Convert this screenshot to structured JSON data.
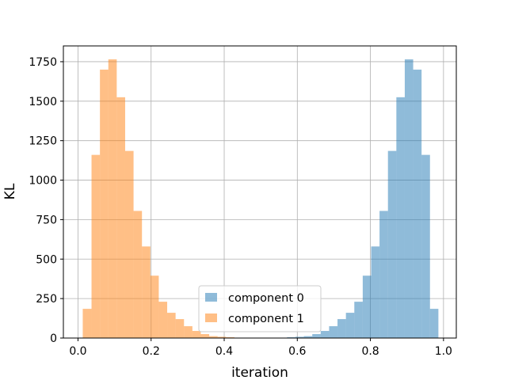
{
  "chart_data": {
    "type": "bar",
    "xlabel": "iteration",
    "ylabel": "KL",
    "xlim": [
      -0.04,
      1.035
    ],
    "ylim": [
      0,
      1850
    ],
    "xticks": [
      0.0,
      0.2,
      0.4,
      0.6,
      0.8,
      1.0
    ],
    "xtick_labels": [
      "0.0",
      "0.2",
      "0.4",
      "0.6",
      "0.8",
      "1.0"
    ],
    "yticks": [
      0,
      250,
      500,
      750,
      1000,
      1250,
      1500,
      1750
    ],
    "ytick_labels": [
      "0",
      "250",
      "500",
      "750",
      "1000",
      "1250",
      "1500",
      "1750"
    ],
    "grid": true,
    "legend_position": "lower-center",
    "series": [
      {
        "name": "component 0",
        "color": "#1f77b4",
        "alpha": 0.5,
        "bins": [
          [
            0.572,
            0.595,
            5
          ],
          [
            0.595,
            0.618,
            8
          ],
          [
            0.618,
            0.641,
            12
          ],
          [
            0.641,
            0.664,
            25
          ],
          [
            0.664,
            0.687,
            45
          ],
          [
            0.687,
            0.71,
            75
          ],
          [
            0.71,
            0.733,
            120
          ],
          [
            0.733,
            0.756,
            160
          ],
          [
            0.756,
            0.779,
            230
          ],
          [
            0.779,
            0.802,
            395
          ],
          [
            0.802,
            0.825,
            580
          ],
          [
            0.825,
            0.848,
            805
          ],
          [
            0.848,
            0.871,
            1185
          ],
          [
            0.871,
            0.894,
            1525
          ],
          [
            0.894,
            0.917,
            1765
          ],
          [
            0.917,
            0.94,
            1700
          ],
          [
            0.94,
            0.963,
            1160
          ],
          [
            0.963,
            0.986,
            185
          ]
        ]
      },
      {
        "name": "component 1",
        "color": "#ff7f0e",
        "alpha": 0.5,
        "bins": [
          [
            0.013,
            0.037,
            185
          ],
          [
            0.037,
            0.06,
            1160
          ],
          [
            0.06,
            0.083,
            1700
          ],
          [
            0.083,
            0.106,
            1765
          ],
          [
            0.106,
            0.129,
            1525
          ],
          [
            0.129,
            0.152,
            1185
          ],
          [
            0.152,
            0.175,
            805
          ],
          [
            0.175,
            0.198,
            580
          ],
          [
            0.198,
            0.221,
            395
          ],
          [
            0.221,
            0.244,
            230
          ],
          [
            0.244,
            0.267,
            160
          ],
          [
            0.267,
            0.29,
            120
          ],
          [
            0.29,
            0.313,
            75
          ],
          [
            0.313,
            0.336,
            45
          ],
          [
            0.336,
            0.359,
            25
          ],
          [
            0.359,
            0.382,
            12
          ],
          [
            0.382,
            0.405,
            8
          ],
          [
            0.405,
            0.428,
            5
          ]
        ]
      }
    ]
  }
}
